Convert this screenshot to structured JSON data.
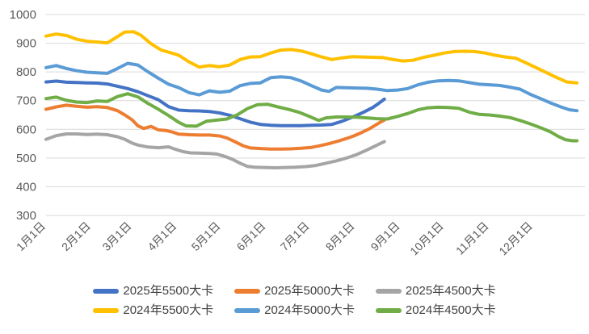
{
  "chart_data": {
    "type": "line",
    "title": "",
    "xlabel": "",
    "ylabel": "",
    "grid": "horizontal",
    "legend_position": "bottom",
    "legend_rows": 2,
    "y_axis": {
      "min": 300,
      "max": 1000,
      "step": 100,
      "ticks": [
        300,
        400,
        500,
        600,
        700,
        800,
        900,
        1000
      ]
    },
    "x_axis": {
      "unit": "day-of-year",
      "range": [
        1,
        365
      ],
      "tick_days": [
        1,
        32,
        60,
        91,
        121,
        152,
        182,
        213,
        244,
        274,
        305,
        335
      ],
      "tick_labels": [
        "1月1日",
        "2月1日",
        "3月1日",
        "4月1日",
        "5月1日",
        "6月1日",
        "7月1日",
        "8月1日",
        "9月1日",
        "10月1日",
        "11月1日",
        "12月1日"
      ]
    },
    "colors": {
      "grid": "#d9d9d9",
      "axis_text": "#595959"
    },
    "series": [
      {
        "name": "2025年5500大卡",
        "color": "#4472C4",
        "points": [
          [
            1,
            765
          ],
          [
            8,
            768
          ],
          [
            15,
            764
          ],
          [
            22,
            763
          ],
          [
            29,
            762
          ],
          [
            36,
            761
          ],
          [
            43,
            758
          ],
          [
            50,
            750
          ],
          [
            57,
            742
          ],
          [
            64,
            731
          ],
          [
            71,
            717
          ],
          [
            78,
            703
          ],
          [
            85,
            679
          ],
          [
            92,
            667
          ],
          [
            99,
            665
          ],
          [
            106,
            664
          ],
          [
            113,
            662
          ],
          [
            120,
            657
          ],
          [
            127,
            649
          ],
          [
            134,
            637
          ],
          [
            141,
            625
          ],
          [
            148,
            617
          ],
          [
            155,
            614
          ],
          [
            162,
            613
          ],
          [
            169,
            613
          ],
          [
            176,
            613
          ],
          [
            183,
            614
          ],
          [
            190,
            615
          ],
          [
            197,
            617
          ],
          [
            204,
            628
          ],
          [
            211,
            642
          ],
          [
            218,
            658
          ],
          [
            225,
            676
          ],
          [
            229,
            690
          ],
          [
            233,
            705
          ]
        ]
      },
      {
        "name": "2025年5000大卡",
        "color": "#ED7D31",
        "points": [
          [
            1,
            670
          ],
          [
            8,
            678
          ],
          [
            15,
            684
          ],
          [
            22,
            680
          ],
          [
            29,
            677
          ],
          [
            36,
            679
          ],
          [
            43,
            676
          ],
          [
            50,
            665
          ],
          [
            55,
            650
          ],
          [
            60,
            633
          ],
          [
            64,
            612
          ],
          [
            68,
            603
          ],
          [
            73,
            610
          ],
          [
            78,
            598
          ],
          [
            83,
            596
          ],
          [
            88,
            590
          ],
          [
            92,
            583
          ],
          [
            99,
            581
          ],
          [
            106,
            580
          ],
          [
            113,
            580
          ],
          [
            120,
            577
          ],
          [
            125,
            570
          ],
          [
            130,
            558
          ],
          [
            136,
            543
          ],
          [
            141,
            535
          ],
          [
            148,
            533
          ],
          [
            155,
            531
          ],
          [
            162,
            531
          ],
          [
            169,
            532
          ],
          [
            176,
            534
          ],
          [
            183,
            537
          ],
          [
            188,
            542
          ],
          [
            195,
            550
          ],
          [
            202,
            560
          ],
          [
            207,
            568
          ],
          [
            212,
            577
          ],
          [
            217,
            588
          ],
          [
            222,
            600
          ],
          [
            227,
            615
          ],
          [
            230,
            624
          ],
          [
            233,
            632
          ]
        ]
      },
      {
        "name": "2025年4500大卡",
        "color": "#A5A5A5",
        "points": [
          [
            1,
            565
          ],
          [
            8,
            578
          ],
          [
            15,
            584
          ],
          [
            22,
            584
          ],
          [
            29,
            582
          ],
          [
            36,
            583
          ],
          [
            43,
            581
          ],
          [
            50,
            574
          ],
          [
            55,
            565
          ],
          [
            60,
            552
          ],
          [
            64,
            545
          ],
          [
            71,
            538
          ],
          [
            78,
            536
          ],
          [
            85,
            539
          ],
          [
            90,
            530
          ],
          [
            95,
            522
          ],
          [
            100,
            518
          ],
          [
            106,
            517
          ],
          [
            113,
            516
          ],
          [
            118,
            514
          ],
          [
            124,
            505
          ],
          [
            129,
            495
          ],
          [
            134,
            482
          ],
          [
            139,
            471
          ],
          [
            144,
            468
          ],
          [
            151,
            467
          ],
          [
            158,
            466
          ],
          [
            165,
            467
          ],
          [
            172,
            468
          ],
          [
            179,
            470
          ],
          [
            186,
            474
          ],
          [
            193,
            482
          ],
          [
            200,
            490
          ],
          [
            207,
            500
          ],
          [
            214,
            512
          ],
          [
            221,
            528
          ],
          [
            226,
            540
          ],
          [
            230,
            550
          ],
          [
            233,
            557
          ]
        ]
      },
      {
        "name": "2024年5500大卡",
        "color": "#FFC000",
        "points": [
          [
            1,
            925
          ],
          [
            8,
            932
          ],
          [
            15,
            927
          ],
          [
            22,
            914
          ],
          [
            29,
            907
          ],
          [
            36,
            904
          ],
          [
            43,
            901
          ],
          [
            50,
            923
          ],
          [
            55,
            939
          ],
          [
            61,
            940
          ],
          [
            66,
            928
          ],
          [
            73,
            898
          ],
          [
            80,
            876
          ],
          [
            87,
            866
          ],
          [
            92,
            858
          ],
          [
            99,
            835
          ],
          [
            106,
            817
          ],
          [
            113,
            822
          ],
          [
            120,
            818
          ],
          [
            127,
            824
          ],
          [
            134,
            843
          ],
          [
            141,
            852
          ],
          [
            148,
            853
          ],
          [
            155,
            866
          ],
          [
            162,
            876
          ],
          [
            169,
            878
          ],
          [
            176,
            873
          ],
          [
            183,
            863
          ],
          [
            190,
            852
          ],
          [
            197,
            843
          ],
          [
            204,
            849
          ],
          [
            211,
            853
          ],
          [
            218,
            852
          ],
          [
            225,
            851
          ],
          [
            232,
            850
          ],
          [
            239,
            843
          ],
          [
            246,
            838
          ],
          [
            253,
            841
          ],
          [
            260,
            851
          ],
          [
            267,
            858
          ],
          [
            274,
            866
          ],
          [
            281,
            871
          ],
          [
            288,
            872
          ],
          [
            295,
            871
          ],
          [
            302,
            866
          ],
          [
            309,
            858
          ],
          [
            316,
            852
          ],
          [
            323,
            848
          ],
          [
            330,
            832
          ],
          [
            337,
            815
          ],
          [
            344,
            798
          ],
          [
            351,
            781
          ],
          [
            358,
            765
          ],
          [
            365,
            762
          ]
        ]
      },
      {
        "name": "2024年5000大卡",
        "color": "#5B9BD5",
        "points": [
          [
            1,
            815
          ],
          [
            8,
            822
          ],
          [
            15,
            812
          ],
          [
            22,
            804
          ],
          [
            29,
            799
          ],
          [
            36,
            797
          ],
          [
            43,
            795
          ],
          [
            50,
            812
          ],
          [
            57,
            830
          ],
          [
            64,
            824
          ],
          [
            71,
            800
          ],
          [
            78,
            778
          ],
          [
            85,
            757
          ],
          [
            92,
            745
          ],
          [
            99,
            728
          ],
          [
            106,
            720
          ],
          [
            113,
            734
          ],
          [
            120,
            729
          ],
          [
            127,
            733
          ],
          [
            134,
            752
          ],
          [
            141,
            760
          ],
          [
            148,
            762
          ],
          [
            155,
            780
          ],
          [
            162,
            783
          ],
          [
            169,
            780
          ],
          [
            176,
            768
          ],
          [
            183,
            752
          ],
          [
            190,
            737
          ],
          [
            195,
            732
          ],
          [
            200,
            746
          ],
          [
            207,
            745
          ],
          [
            214,
            744
          ],
          [
            221,
            743
          ],
          [
            228,
            740
          ],
          [
            235,
            735
          ],
          [
            242,
            737
          ],
          [
            249,
            742
          ],
          [
            256,
            755
          ],
          [
            263,
            764
          ],
          [
            270,
            769
          ],
          [
            277,
            770
          ],
          [
            284,
            769
          ],
          [
            291,
            763
          ],
          [
            298,
            757
          ],
          [
            305,
            755
          ],
          [
            312,
            753
          ],
          [
            319,
            747
          ],
          [
            326,
            740
          ],
          [
            333,
            722
          ],
          [
            340,
            707
          ],
          [
            347,
            692
          ],
          [
            354,
            678
          ],
          [
            360,
            668
          ],
          [
            365,
            665
          ]
        ]
      },
      {
        "name": "2024年4500大卡",
        "color": "#70AD47",
        "points": [
          [
            1,
            707
          ],
          [
            8,
            712
          ],
          [
            15,
            701
          ],
          [
            22,
            695
          ],
          [
            29,
            693
          ],
          [
            36,
            699
          ],
          [
            43,
            697
          ],
          [
            50,
            714
          ],
          [
            57,
            724
          ],
          [
            64,
            713
          ],
          [
            71,
            690
          ],
          [
            78,
            670
          ],
          [
            85,
            648
          ],
          [
            92,
            624
          ],
          [
            97,
            612
          ],
          [
            104,
            611
          ],
          [
            111,
            628
          ],
          [
            118,
            632
          ],
          [
            125,
            636
          ],
          [
            132,
            650
          ],
          [
            139,
            672
          ],
          [
            146,
            686
          ],
          [
            153,
            687
          ],
          [
            160,
            678
          ],
          [
            167,
            670
          ],
          [
            174,
            660
          ],
          [
            181,
            646
          ],
          [
            188,
            631
          ],
          [
            193,
            640
          ],
          [
            200,
            643
          ],
          [
            207,
            643
          ],
          [
            214,
            642
          ],
          [
            221,
            640
          ],
          [
            228,
            637
          ],
          [
            235,
            636
          ],
          [
            242,
            645
          ],
          [
            249,
            655
          ],
          [
            256,
            668
          ],
          [
            263,
            675
          ],
          [
            270,
            677
          ],
          [
            277,
            676
          ],
          [
            284,
            673
          ],
          [
            291,
            660
          ],
          [
            298,
            652
          ],
          [
            305,
            650
          ],
          [
            312,
            646
          ],
          [
            319,
            641
          ],
          [
            326,
            631
          ],
          [
            333,
            619
          ],
          [
            340,
            606
          ],
          [
            347,
            591
          ],
          [
            352,
            576
          ],
          [
            357,
            564
          ],
          [
            362,
            560
          ],
          [
            365,
            560
          ]
        ]
      }
    ]
  }
}
